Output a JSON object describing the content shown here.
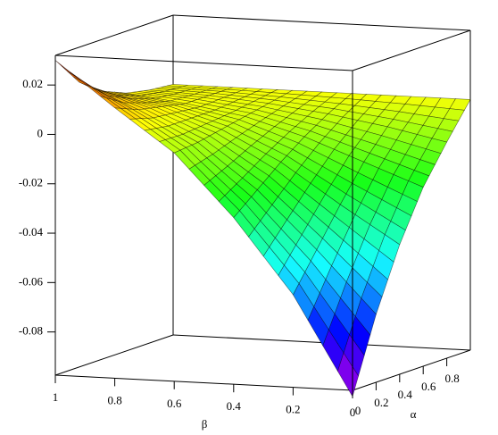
{
  "chart_data": {
    "type": "surface",
    "x_label": "β",
    "y_label": "α",
    "x": [
      0,
      0.2,
      0.4,
      0.6,
      0.8,
      1
    ],
    "y": [
      0,
      0.2,
      0.4,
      0.6,
      0.8,
      1
    ],
    "z": [
      [
        -0.1,
        -0.06,
        -0.03,
        -0.005,
        0.012,
        0.03
      ],
      [
        -0.07,
        -0.045,
        -0.022,
        -0.004,
        0.008,
        0.018
      ],
      [
        -0.045,
        -0.03,
        -0.014,
        -0.002,
        0.006,
        0.011
      ],
      [
        -0.025,
        -0.016,
        -0.007,
        0.0,
        0.004,
        0.007
      ],
      [
        -0.01,
        -0.005,
        -0.001,
        0.002,
        0.004,
        0.005
      ],
      [
        0.004,
        0.004,
        0.004,
        0.004,
        0.004,
        0.004
      ]
    ],
    "xlim": [
      0,
      1
    ],
    "xticks": [
      1,
      0.8,
      0.6,
      0.4,
      0.2,
      0
    ],
    "ylim": [
      0,
      1
    ],
    "yticks": [
      0,
      0.2,
      0.4,
      0.6,
      0.8
    ],
    "zlim": [
      -0.0975,
      0.032
    ],
    "zticks": [
      0.02,
      0,
      -0.02,
      -0.04,
      -0.06,
      -0.08
    ]
  }
}
